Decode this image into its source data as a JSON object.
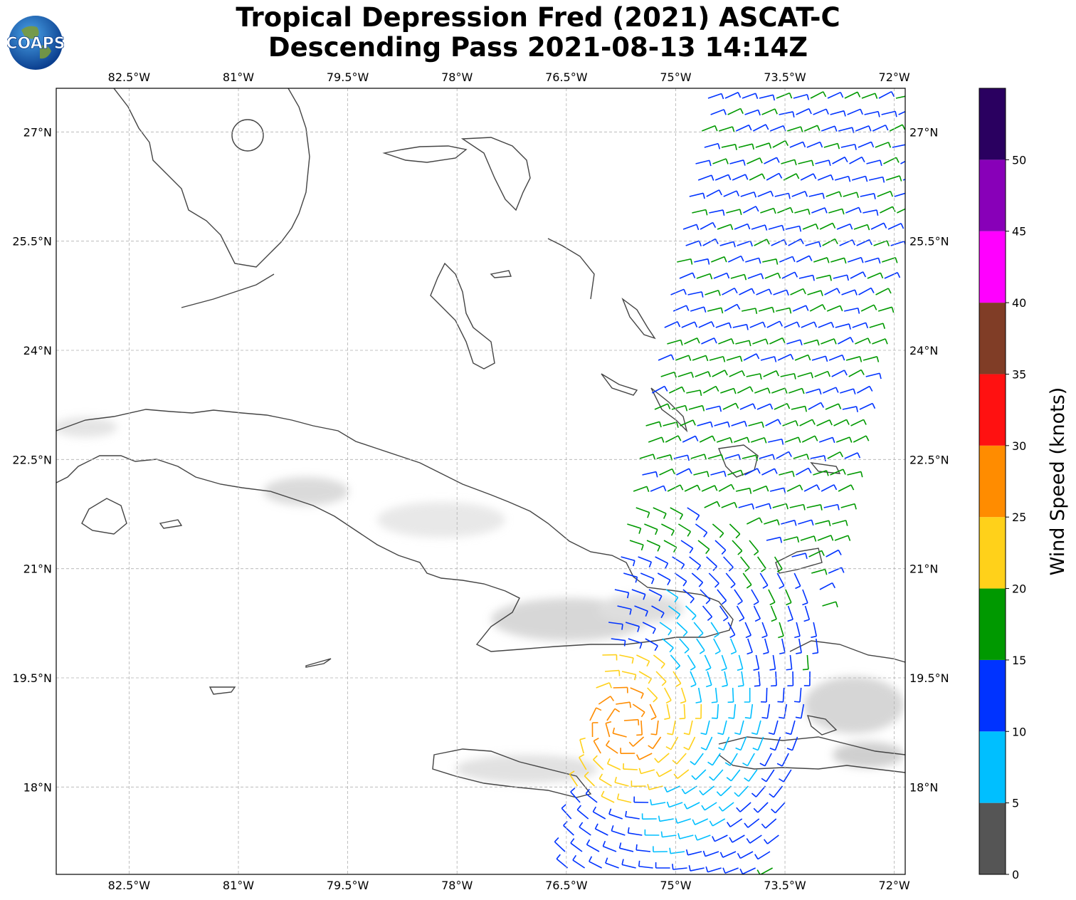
{
  "title": {
    "line1": "Tropical Depression Fred (2021) ASCAT-C",
    "line2": "Descending Pass 2021-08-13 14:14Z"
  },
  "logo": {
    "text": "COAPS",
    "icon": "globe-icon"
  },
  "axes": {
    "lon_ticks": [
      "82.5°W",
      "81°W",
      "79.5°W",
      "78°W",
      "76.5°W",
      "75°W",
      "73.5°W",
      "72°W"
    ],
    "lat_ticks": [
      "27°N",
      "25.5°N",
      "24°N",
      "22.5°N",
      "21°N",
      "19.5°N",
      "18°N"
    ],
    "lon_range": [
      -83.5,
      -71.85
    ],
    "lat_range": [
      16.8,
      27.6
    ],
    "grid": true
  },
  "colorbar": {
    "label": "Wind Speed (knots)",
    "ticks": [
      "0",
      "5",
      "10",
      "15",
      "20",
      "25",
      "30",
      "35",
      "40",
      "45",
      "50"
    ],
    "colors": [
      "#555555",
      "#00bfff",
      "#0033ff",
      "#009900",
      "#ffd11a",
      "#ff8c00",
      "#ff1111",
      "#803d26",
      "#ff00ff",
      "#8800b8",
      "#2a0060"
    ]
  },
  "layers": {
    "coastline_color": "#444444",
    "terrain_color": "#d9d9d9",
    "wind_barbs": "ASCAT-C descending pass wind vectors"
  }
}
